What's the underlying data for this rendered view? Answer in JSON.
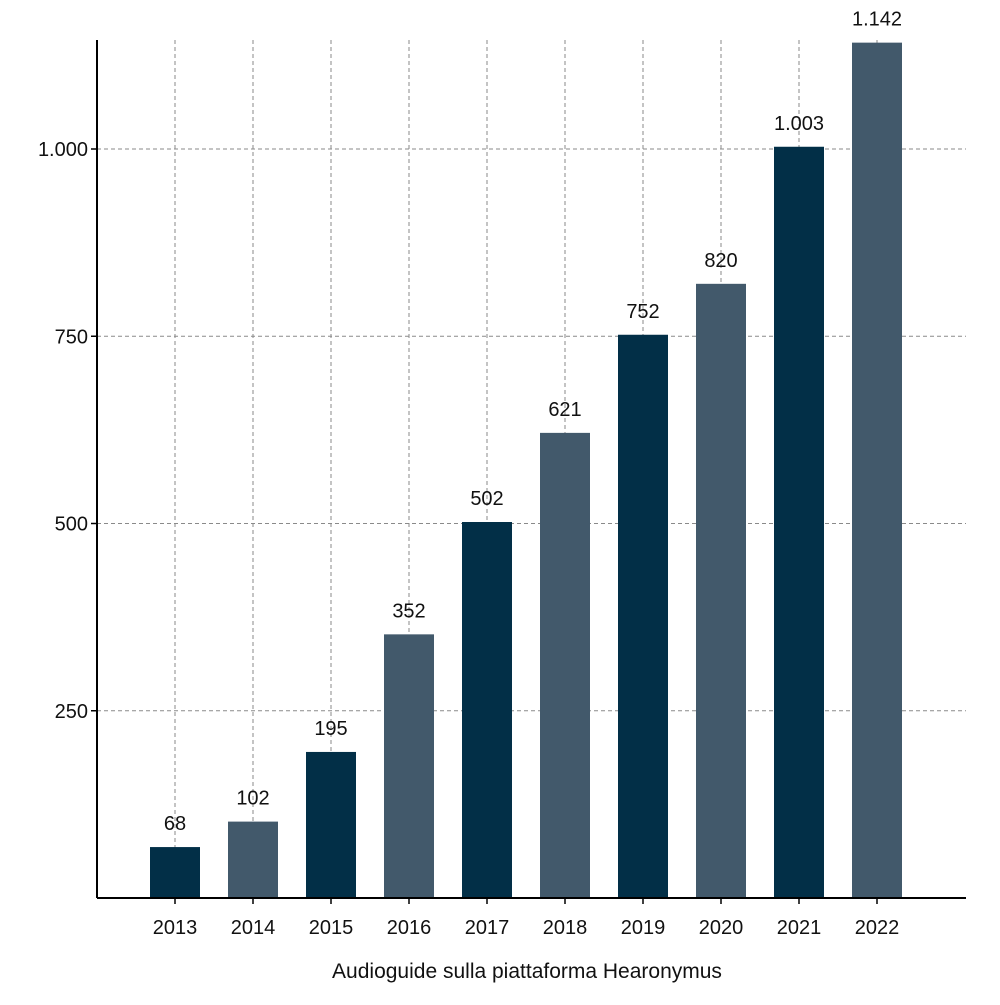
{
  "chart_data": {
    "type": "bar",
    "title": "",
    "xlabel": "Audioguide sulla piattaforma Hearonymus",
    "ylabel": "",
    "categories": [
      "2013",
      "2014",
      "2015",
      "2016",
      "2017",
      "2018",
      "2019",
      "2020",
      "2021",
      "2022"
    ],
    "values": [
      68,
      102,
      195,
      352,
      502,
      621,
      752,
      820,
      1003,
      1142
    ],
    "value_labels": [
      "68",
      "102",
      "195",
      "352",
      "502",
      "621",
      "752",
      "820",
      "1.003",
      "1.142"
    ],
    "ylim": [
      0,
      1000
    ],
    "y_ticks": [
      250,
      500,
      750,
      1000
    ],
    "y_tick_labels": [
      "250",
      "500",
      "750",
      "1.000"
    ],
    "grid": true,
    "grid_style": "dashed",
    "bar_colors": [
      "#022f47",
      "#42596b",
      "#022f47",
      "#42596b",
      "#022f47",
      "#42596b",
      "#022f47",
      "#42596b",
      "#022f47",
      "#42596b"
    ],
    "grid_color": "#8a8a8a",
    "axis_color": "#000000"
  }
}
